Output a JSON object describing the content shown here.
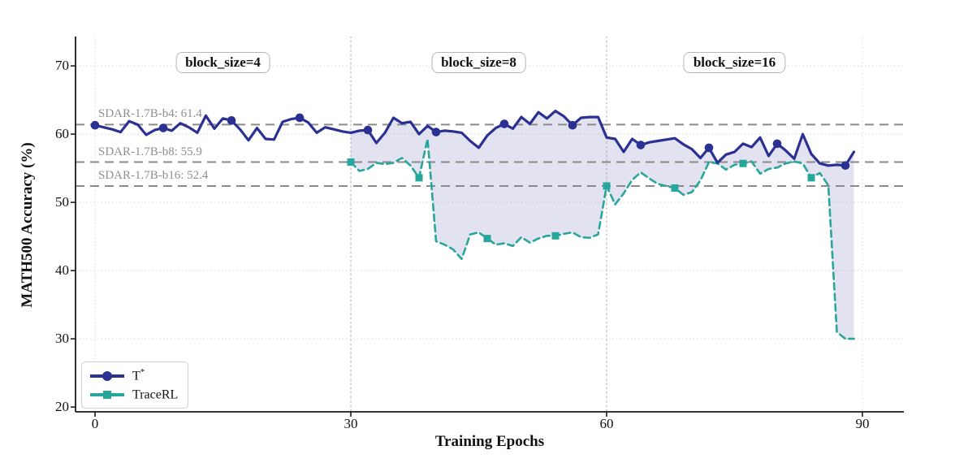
{
  "figure": {
    "x_axis_title": "Training Epochs",
    "y_axis_title": "MATH500 Accuracy (%)"
  },
  "legend": {
    "items": [
      {
        "base": "T",
        "sup": "*",
        "series": "T*"
      },
      {
        "base": "TraceRL",
        "sup": "",
        "series": "TraceRL"
      }
    ]
  },
  "chart_data": {
    "type": "line",
    "title": "",
    "xlabel": "Training Epochs",
    "ylabel": "MATH500 Accuracy (%)",
    "xlim": [
      -2.29,
      94.86
    ],
    "ylim": [
      19.3,
      74.3
    ],
    "x_ticks": [
      0,
      30,
      60,
      90
    ],
    "y_ticks": [
      20,
      30,
      40,
      50,
      60,
      70
    ],
    "grid": "dotted",
    "legend_position": "lower-left",
    "block_separators": [
      30,
      60
    ],
    "block_labels": [
      {
        "label": "block_size=4",
        "center_epoch": 15,
        "y_value": 70.5
      },
      {
        "label": "block_size=8",
        "center_epoch": 45,
        "y_value": 70.5
      },
      {
        "label": "block_size=16",
        "center_epoch": 75,
        "y_value": 70.5
      }
    ],
    "reference_lines": [
      {
        "label": "SDAR-1.7B-b4: 61.4",
        "value": 61.4,
        "color": "#8a8a8a"
      },
      {
        "label": "SDAR-1.7B-b8: 55.9",
        "value": 55.9,
        "color": "#8a8a8a"
      },
      {
        "label": "SDAR-1.7B-b16: 52.4",
        "value": 52.4,
        "color": "#8a8a8a"
      }
    ],
    "fill_between": {
      "series_a": "T*",
      "series_b": "TraceRL",
      "from_epoch": 30,
      "to_epoch": 89,
      "color": "rgba(160,160,205,0.30)"
    },
    "series": [
      {
        "name": "T*",
        "color": "#2b3193",
        "line_style": "solid",
        "line_width": 3.2,
        "marker": "circle",
        "marker_epochs": [
          0,
          8,
          16,
          24,
          32,
          40,
          48,
          56,
          64,
          72,
          80,
          88
        ],
        "x_start": 0,
        "x_step": 1,
        "values": [
          61.3,
          61.0,
          60.7,
          60.3,
          61.9,
          61.4,
          59.9,
          60.6,
          60.9,
          60.5,
          61.6,
          61.0,
          60.2,
          62.7,
          60.8,
          62.3,
          62.0,
          60.7,
          59.1,
          60.9,
          59.3,
          59.2,
          61.8,
          62.2,
          62.4,
          61.7,
          60.2,
          61.0,
          60.7,
          60.4,
          60.2,
          60.5,
          60.6,
          58.7,
          60.2,
          62.4,
          61.6,
          61.8,
          60.0,
          61.2,
          60.3,
          60.5,
          60.4,
          60.2,
          59.0,
          58.0,
          59.8,
          60.9,
          61.5,
          60.8,
          62.5,
          61.5,
          63.2,
          62.3,
          63.4,
          62.6,
          61.3,
          62.4,
          62.5,
          62.5,
          59.5,
          59.3,
          57.4,
          59.3,
          58.4,
          58.8,
          59.0,
          59.2,
          59.4,
          58.5,
          57.8,
          56.5,
          58.0,
          55.8,
          57.0,
          57.4,
          58.6,
          58.1,
          59.5,
          56.8,
          58.6,
          57.6,
          56.4,
          60.0,
          57.1,
          55.7,
          55.4,
          55.5,
          55.4,
          57.4
        ]
      },
      {
        "name": "TraceRL",
        "color": "#27a69b",
        "line_style": "dashed",
        "line_width": 2.6,
        "marker": "square",
        "marker_epochs": [
          30,
          38,
          46,
          54,
          60,
          68,
          76,
          84
        ],
        "x_start": 30,
        "x_step": 1,
        "values": [
          55.9,
          54.6,
          54.9,
          55.8,
          55.6,
          55.8,
          56.5,
          55.4,
          53.6,
          59.3,
          44.3,
          43.8,
          43.1,
          41.7,
          45.3,
          45.6,
          44.7,
          43.8,
          44.0,
          43.6,
          44.9,
          44.1,
          44.7,
          45.1,
          45.1,
          45.4,
          45.6,
          44.9,
          44.8,
          45.3,
          52.4,
          49.7,
          51.3,
          53.3,
          54.4,
          53.5,
          52.7,
          52.4,
          52.1,
          51.1,
          51.5,
          53.2,
          55.9,
          55.7,
          54.8,
          55.5,
          55.7,
          56.0,
          54.2,
          54.9,
          55.1,
          55.7,
          56.0,
          55.7,
          53.6,
          54.3,
          52.5,
          31.0,
          30.0,
          30.0
        ]
      }
    ]
  }
}
